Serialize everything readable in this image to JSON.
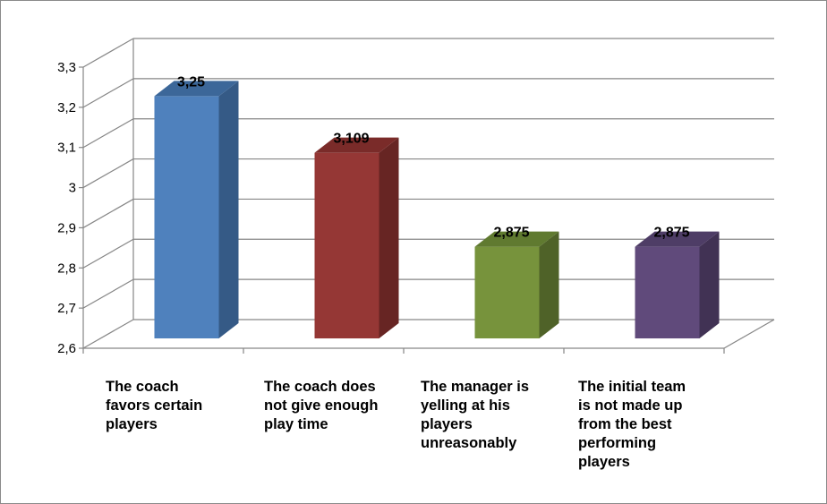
{
  "chart_data": {
    "type": "bar",
    "style": "3d-column",
    "categories": [
      {
        "label": "The coach favors certain players",
        "lines": [
          "The coach",
          "favors certain",
          "players"
        ]
      },
      {
        "label": "The coach does not give enough play time",
        "lines": [
          "The coach does",
          "not give enough",
          "play time"
        ]
      },
      {
        "label": "The manager is yelling at his players unreasonably",
        "lines": [
          "The manager is",
          "yelling at his",
          "players",
          "unreasonably"
        ]
      },
      {
        "label": "The initial team is not made up from the best performing players",
        "lines": [
          "The initial team",
          "is not made up",
          "from the best",
          "performing",
          "players"
        ]
      }
    ],
    "values": [
      3.25,
      3.109,
      2.875,
      2.875
    ],
    "data_labels": [
      "3,25",
      "3,109",
      "2,875",
      "2,875"
    ],
    "ylim": [
      2.6,
      3.3
    ],
    "yticks": [
      2.6,
      2.7,
      2.8,
      2.9,
      3.0,
      3.1,
      3.2,
      3.3
    ],
    "ytick_labels": [
      "2,6",
      "2,7",
      "2,8",
      "2,9",
      "3",
      "3,1",
      "3,2",
      "3,3"
    ],
    "grid": true,
    "legend": "none",
    "colors": {
      "bars": [
        "#4f81bd",
        "#953735",
        "#77933c",
        "#604a7b"
      ],
      "bar_sides": [
        "#355a86",
        "#672523",
        "#4f6228",
        "#413254"
      ],
      "bar_tops": [
        "#3c6799",
        "#7a2b29",
        "#607a30",
        "#4e3d66"
      ],
      "grid": "#868686",
      "frame": "#8a8a8a"
    }
  }
}
